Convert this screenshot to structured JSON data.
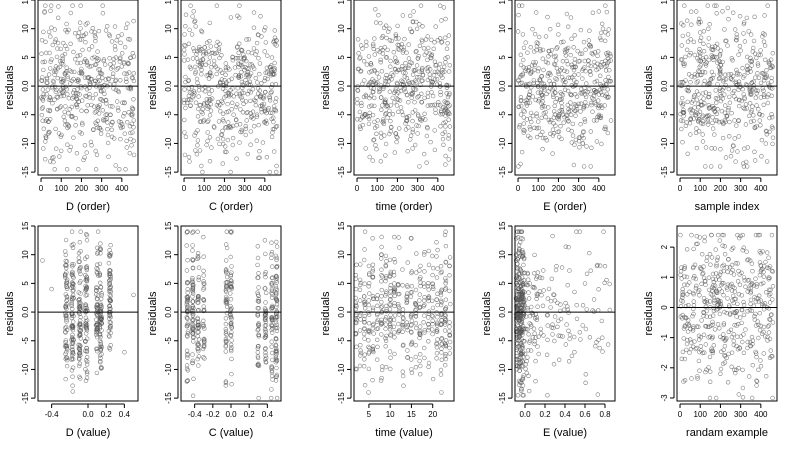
{
  "chart_data": [
    {
      "type": "scatter",
      "xlabel": "D (order)",
      "ylabel": "residuals",
      "xlim": [
        -15,
        480
      ],
      "ylim": [
        -15.5,
        15
      ],
      "xticks": [
        0,
        100,
        200,
        300,
        400
      ],
      "xtick_labels": [
        "0",
        "100",
        "200",
        "300",
        "400"
      ],
      "yticks": [
        -15,
        -10,
        -5,
        0,
        5,
        10,
        15
      ],
      "ytick_labels": [
        "-15",
        "-10",
        "-5",
        "0.0",
        "5",
        "10",
        "15"
      ],
      "reference_line_y": 0,
      "n_points": 460,
      "x_range": [
        0,
        460
      ],
      "y_range": [
        -14.5,
        14
      ],
      "series": [
        {
          "x": [
            5,
            40,
            80,
            120,
            160,
            200,
            240,
            280,
            320,
            360,
            400,
            440,
            460
          ],
          "y": [
            8,
            2,
            -4,
            7,
            -9,
            3,
            -2,
            6,
            -5,
            4,
            9,
            -7,
            -12
          ]
        }
      ]
    },
    {
      "type": "scatter",
      "xlabel": "C (order)",
      "ylabel": "residuals",
      "xlim": [
        -15,
        480
      ],
      "ylim": [
        -15.5,
        15
      ],
      "xticks": [
        0,
        100,
        200,
        300,
        400
      ],
      "xtick_labels": [
        "0",
        "100",
        "200",
        "300",
        "400"
      ],
      "yticks": [
        -15,
        -10,
        -5,
        0,
        5,
        10,
        15
      ],
      "ytick_labels": [
        "-15",
        "-10",
        "-5",
        "0.0",
        "5",
        "10",
        "15"
      ],
      "reference_line_y": 0,
      "n_points": 460,
      "x_range": [
        0,
        460
      ],
      "y_range": [
        -15,
        14
      ],
      "series": [
        {
          "x": [
            5,
            40,
            80,
            120,
            160,
            200,
            240,
            280,
            320,
            360,
            400,
            440,
            460
          ],
          "y": [
            -12,
            9,
            4,
            -6,
            7,
            -2,
            5,
            -8,
            3,
            6,
            -4,
            2,
            -7
          ]
        }
      ]
    },
    {
      "type": "scatter",
      "xlabel": "time (order)",
      "ylabel": "residuals",
      "xlim": [
        -15,
        480
      ],
      "ylim": [
        -15.5,
        15
      ],
      "xticks": [
        0,
        100,
        200,
        300,
        400
      ],
      "xtick_labels": [
        "0",
        "100",
        "200",
        "300",
        "400"
      ],
      "yticks": [
        -15,
        -10,
        -5,
        0,
        5,
        10,
        15
      ],
      "ytick_labels": [
        "-15",
        "-10",
        "-5",
        "0.0",
        "5",
        "10",
        "15"
      ],
      "reference_line_y": 0,
      "n_points": 460,
      "x_range": [
        0,
        460
      ],
      "y_range": [
        -14,
        14
      ],
      "series": [
        {
          "x": [
            5,
            40,
            80,
            120,
            160,
            200,
            240,
            280,
            320,
            360,
            400,
            440,
            460
          ],
          "y": [
            3,
            -5,
            7,
            -2,
            10,
            -9,
            4,
            13,
            -6,
            2,
            8,
            -4,
            -11
          ]
        }
      ]
    },
    {
      "type": "scatter",
      "xlabel": "E (order)",
      "ylabel": "residuals",
      "xlim": [
        -15,
        480
      ],
      "ylim": [
        -15.5,
        15
      ],
      "xticks": [
        0,
        100,
        200,
        300,
        400
      ],
      "xtick_labels": [
        "0",
        "100",
        "200",
        "300",
        "400"
      ],
      "yticks": [
        -15,
        -10,
        -5,
        0,
        5,
        10,
        15
      ],
      "ytick_labels": [
        "-15",
        "-10",
        "-5",
        "0.0",
        "5",
        "10",
        "15"
      ],
      "reference_line_y": 0,
      "n_points": 460,
      "x_range": [
        0,
        460
      ],
      "y_range": [
        -14,
        14
      ],
      "series": [
        {
          "x": [
            5,
            40,
            80,
            120,
            160,
            200,
            240,
            280,
            320,
            360,
            400,
            440,
            460
          ],
          "y": [
            14,
            -3,
            6,
            -8,
            2,
            9,
            -5,
            4,
            -10,
            7,
            13,
            -2,
            -6
          ]
        }
      ]
    },
    {
      "type": "scatter",
      "xlabel": "sample index",
      "ylabel": "residuals",
      "xlim": [
        -15,
        480
      ],
      "ylim": [
        -15.5,
        15
      ],
      "xticks": [
        0,
        100,
        200,
        300,
        400
      ],
      "xtick_labels": [
        "0",
        "100",
        "200",
        "300",
        "400"
      ],
      "yticks": [
        -15,
        -10,
        -5,
        0,
        5,
        10,
        15
      ],
      "ytick_labels": [
        "-15",
        "-10",
        "-5",
        "0.0",
        "5",
        "10",
        "15"
      ],
      "reference_line_y": 0,
      "n_points": 460,
      "x_range": [
        0,
        460
      ],
      "y_range": [
        -14,
        14
      ],
      "series": [
        {
          "x": [
            5,
            40,
            80,
            120,
            160,
            200,
            240,
            280,
            320,
            360,
            400,
            440,
            460
          ],
          "y": [
            -6,
            9,
            13,
            -3,
            5,
            -11,
            2,
            8,
            -4,
            6,
            -2,
            4,
            -9
          ]
        }
      ]
    },
    {
      "type": "scatter",
      "xlabel": "D (value)",
      "ylabel": "residuals",
      "xlim": [
        -0.55,
        0.55
      ],
      "ylim": [
        -15.5,
        15
      ],
      "xticks": [
        -0.4,
        0.0,
        0.2,
        0.4
      ],
      "xtick_labels": [
        "-0.4",
        "0.0",
        "0.2",
        "0.4"
      ],
      "yticks": [
        -15,
        -10,
        -5,
        0,
        5,
        10,
        15
      ],
      "ytick_labels": [
        "-15",
        "-10",
        "-5",
        "0.0",
        "5",
        "10",
        "15"
      ],
      "reference_line_y": 0,
      "n_points": 460,
      "x_range": [
        -0.5,
        0.5
      ],
      "y_range": [
        -14.5,
        14
      ],
      "columns": [
        -0.24,
        -0.17,
        -0.09,
        -0.02,
        0.1,
        0.14,
        0.24
      ],
      "jitter": 0.012,
      "series": [
        {
          "x": [
            -0.5,
            -0.4,
            -0.24,
            -0.17,
            -0.09,
            0.1,
            0.14,
            0.24,
            0.4,
            0.5
          ],
          "y": [
            9,
            4,
            -6,
            7,
            -9,
            -2,
            11,
            5,
            -7,
            3
          ]
        }
      ]
    },
    {
      "type": "scatter",
      "xlabel": "C (value)",
      "ylabel": "residuals",
      "xlim": [
        -0.55,
        0.55
      ],
      "ylim": [
        -15.5,
        15
      ],
      "xticks": [
        -0.4,
        -0.2,
        0.0,
        0.2,
        0.4
      ],
      "xtick_labels": [
        "-0.4",
        "-0.2",
        "0.0",
        "0.2",
        "0.4"
      ],
      "yticks": [
        -15,
        -10,
        -5,
        0,
        5,
        10,
        15
      ],
      "ytick_labels": [
        "-15",
        "-10",
        "-5",
        "0.0",
        "5",
        "10",
        "15"
      ],
      "reference_line_y": 0,
      "n_points": 460,
      "x_range": [
        -0.5,
        0.5
      ],
      "y_range": [
        -15,
        14
      ],
      "columns": [
        -0.48,
        -0.42,
        -0.36,
        -0.3,
        -0.05,
        0.0,
        0.3,
        0.38,
        0.45,
        0.5
      ],
      "jitter": 0.008,
      "series": [
        {
          "x": [
            -0.48,
            -0.42,
            -0.3,
            0.0,
            0.3,
            0.45,
            0.5
          ],
          "y": [
            -12,
            9,
            5,
            -2,
            6,
            4,
            -7
          ]
        }
      ]
    },
    {
      "type": "scatter",
      "xlabel": "time (value)",
      "ylabel": "residuals",
      "xlim": [
        1.5,
        25
      ],
      "ylim": [
        -15.5,
        15
      ],
      "xticks": [
        5,
        10,
        15,
        20
      ],
      "xtick_labels": [
        "5",
        "10",
        "15",
        "20"
      ],
      "yticks": [
        -15,
        -10,
        -5,
        0,
        5,
        10,
        15
      ],
      "ytick_labels": [
        "-15",
        "-10",
        "-5",
        "0.0",
        "5",
        "10",
        "15"
      ],
      "reference_line_y": 0,
      "n_points": 460,
      "x_range": [
        2,
        24
      ],
      "y_range": [
        -14,
        14
      ],
      "columns": [
        2,
        3,
        4,
        5,
        6,
        7,
        8,
        9,
        10,
        11,
        12,
        13,
        14,
        15,
        16,
        17,
        18,
        19,
        20,
        21,
        22,
        23,
        24
      ],
      "jitter": 0.15,
      "series": [
        {
          "x": [
            2,
            6,
            9,
            12,
            15,
            18,
            21,
            24
          ],
          "y": [
            4,
            -6,
            8,
            13,
            -10,
            2,
            6,
            -4
          ]
        }
      ]
    },
    {
      "type": "scatter",
      "xlabel": "E (value)",
      "ylabel": "residuals",
      "xlim": [
        -0.1,
        0.9
      ],
      "ylim": [
        -15.5,
        15
      ],
      "xticks": [
        0.0,
        0.2,
        0.4,
        0.6,
        0.8
      ],
      "xtick_labels": [
        "0.0",
        "0.2",
        "0.4",
        "0.6",
        "0.8"
      ],
      "yticks": [
        -15,
        -10,
        -5,
        0,
        5,
        10,
        15
      ],
      "ytick_labels": [
        "-15",
        "-10",
        "-5",
        "0.0",
        "5",
        "10",
        "15"
      ],
      "reference_line_y": 0,
      "n_points": 460,
      "x_range": [
        -0.09,
        0.85
      ],
      "y_range": [
        -14.5,
        14
      ],
      "series": [
        {
          "x": [
            -0.09,
            -0.06,
            -0.03,
            0.05,
            0.15,
            0.3,
            0.45,
            0.6,
            0.8
          ],
          "y": [
            10,
            -12,
            3,
            -5,
            6,
            2,
            -4,
            5,
            8
          ]
        }
      ]
    },
    {
      "type": "scatter",
      "xlabel": "randam example",
      "ylabel": "residuals",
      "xlim": [
        -15,
        480
      ],
      "ylim": [
        -3.1,
        2.7
      ],
      "xticks": [
        0,
        100,
        200,
        300,
        400
      ],
      "xtick_labels": [
        "0",
        "100",
        "200",
        "300",
        "400"
      ],
      "yticks": [
        -3,
        -2,
        -1,
        0,
        1,
        2
      ],
      "ytick_labels": [
        "-3",
        "-2",
        "-1",
        "0",
        "1",
        "2"
      ],
      "reference_line_y": 0,
      "n_points": 460,
      "x_range": [
        0,
        460
      ],
      "y_range": [
        -3,
        2.4
      ],
      "series": [
        {
          "x": [
            5,
            40,
            80,
            120,
            160,
            200,
            240,
            280,
            320,
            360,
            400,
            440,
            460
          ],
          "y": [
            1.2,
            -0.8,
            2.1,
            -1.5,
            0.4,
            -2.2,
            1.6,
            -0.3,
            0.9,
            -1.1,
            1.8,
            -0.6,
            0.7
          ]
        }
      ]
    }
  ]
}
